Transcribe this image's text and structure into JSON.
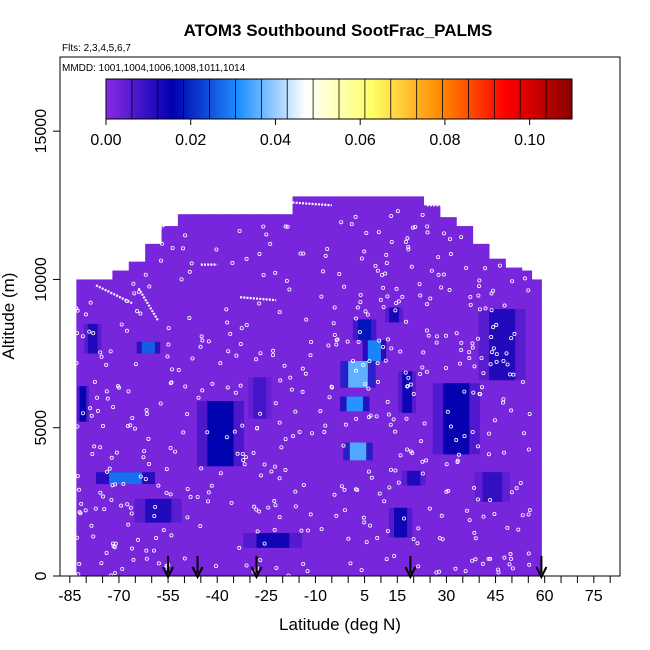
{
  "chart_data": {
    "type": "heatmap",
    "title": "ATOM3 Southbound SootFrac_PALMS",
    "flights_label": "Flts: 2,3,4,5,6,7",
    "dates_label": "MMDD: 1001,1004,1006,1008,1011,1014",
    "xlabel": "Latitude (deg N)",
    "ylabel": "Altitude (m)",
    "xlim": [
      -88,
      83
    ],
    "ylim": [
      0,
      17500
    ],
    "xticks": [
      -85,
      -70,
      -55,
      -40,
      -25,
      -10,
      5,
      15,
      30,
      45,
      60,
      75
    ],
    "xticks_minor": [
      -80,
      -75,
      -65,
      -60,
      -50,
      -45,
      -35,
      -30,
      -20,
      -15,
      -5,
      0,
      10,
      20,
      25,
      35,
      40,
      50,
      55,
      65,
      70,
      80
    ],
    "yticks": [
      0,
      5000,
      10000,
      15000
    ],
    "colorbar": {
      "ticks": [
        0.0,
        0.02,
        0.04,
        0.06,
        0.08,
        0.1
      ],
      "tick_labels": [
        "0.00",
        "0.02",
        "0.04",
        "0.06",
        "0.08",
        "0.10"
      ],
      "min": 0.0,
      "max": 0.11,
      "stops": [
        "#8a2be2",
        "#0000b0",
        "#1e90ff",
        "#ffffff",
        "#ffff66",
        "#ff8c00",
        "#ff0000",
        "#8b0000"
      ]
    },
    "background_value": 0.002,
    "top_profile": [
      {
        "lat": -82,
        "top": 10000
      },
      {
        "lat": -78,
        "top": 10000
      },
      {
        "lat": -72,
        "top": 10300
      },
      {
        "lat": -67,
        "top": 10600
      },
      {
        "lat": -62,
        "top": 11200
      },
      {
        "lat": -57,
        "top": 11800
      },
      {
        "lat": -52,
        "top": 12200
      },
      {
        "lat": -47,
        "top": 12200
      },
      {
        "lat": -42,
        "top": 12200
      },
      {
        "lat": -37,
        "top": 12200
      },
      {
        "lat": -32,
        "top": 12200
      },
      {
        "lat": -27,
        "top": 12200
      },
      {
        "lat": -22,
        "top": 12200
      },
      {
        "lat": -17,
        "top": 12800
      },
      {
        "lat": -12,
        "top": 12800
      },
      {
        "lat": -7,
        "top": 12800
      },
      {
        "lat": -2,
        "top": 12800
      },
      {
        "lat": 3,
        "top": 12800
      },
      {
        "lat": 8,
        "top": 12800
      },
      {
        "lat": 13,
        "top": 12800
      },
      {
        "lat": 18,
        "top": 12800
      },
      {
        "lat": 23,
        "top": 12500
      },
      {
        "lat": 28,
        "top": 12100
      },
      {
        "lat": 33,
        "top": 11800
      },
      {
        "lat": 38,
        "top": 11200
      },
      {
        "lat": 43,
        "top": 10700
      },
      {
        "lat": 48,
        "top": 10400
      },
      {
        "lat": 53,
        "top": 10300
      },
      {
        "lat": 56,
        "top": 10000
      }
    ],
    "bottom_edge": {
      "lat_south": -83,
      "lat_north": 56
    },
    "hotspots": [
      {
        "lat": -81,
        "alt": 5800,
        "w": 2,
        "h": 1200,
        "value": 0.015
      },
      {
        "lat": -78,
        "alt": 8000,
        "w": 3,
        "h": 1000,
        "value": 0.012
      },
      {
        "lat": -68,
        "alt": 3300,
        "w": 10,
        "h": 400,
        "value": 0.028
      },
      {
        "lat": -61,
        "alt": 7700,
        "w": 4,
        "h": 400,
        "value": 0.026
      },
      {
        "lat": -58,
        "alt": 2200,
        "w": 8,
        "h": 800,
        "value": 0.012
      },
      {
        "lat": -39,
        "alt": 4800,
        "w": 8,
        "h": 2200,
        "value": 0.016
      },
      {
        "lat": -23,
        "alt": 1200,
        "w": 10,
        "h": 500,
        "value": 0.014
      },
      {
        "lat": -27,
        "alt": 6000,
        "w": 4,
        "h": 1400,
        "value": 0.008
      },
      {
        "lat": 3,
        "alt": 6800,
        "w": 6,
        "h": 900,
        "value": 0.036
      },
      {
        "lat": 2,
        "alt": 5800,
        "w": 5,
        "h": 500,
        "value": 0.032
      },
      {
        "lat": 3,
        "alt": 4200,
        "w": 5,
        "h": 600,
        "value": 0.035
      },
      {
        "lat": 8,
        "alt": 7600,
        "w": 4,
        "h": 700,
        "value": 0.03
      },
      {
        "lat": 5,
        "alt": 8300,
        "w": 4,
        "h": 700,
        "value": 0.018
      },
      {
        "lat": 18,
        "alt": 6200,
        "w": 3,
        "h": 1400,
        "value": 0.014
      },
      {
        "lat": 16,
        "alt": 1800,
        "w": 4,
        "h": 1000,
        "value": 0.014
      },
      {
        "lat": 20,
        "alt": 3300,
        "w": 4,
        "h": 500,
        "value": 0.012
      },
      {
        "lat": 33,
        "alt": 5300,
        "w": 8,
        "h": 2400,
        "value": 0.015
      },
      {
        "lat": 47,
        "alt": 7800,
        "w": 8,
        "h": 2400,
        "value": 0.012
      },
      {
        "lat": 44,
        "alt": 3000,
        "w": 6,
        "h": 1000,
        "value": 0.01
      },
      {
        "lat": 14,
        "alt": 8800,
        "w": 3,
        "h": 500,
        "value": 0.013
      }
    ],
    "flight_tracks": [
      {
        "lat0": -77,
        "alt0": 9800,
        "lat1": -66,
        "alt1": 9200
      },
      {
        "lat0": -64,
        "alt0": 9700,
        "lat1": -58,
        "alt1": 8600
      },
      {
        "lat0": -62,
        "alt0": 11300,
        "lat1": -53,
        "alt1": 12100
      },
      {
        "lat0": -45,
        "alt0": 10500,
        "lat1": -40,
        "alt1": 10500
      },
      {
        "lat0": -33,
        "alt0": 9400,
        "lat1": -22,
        "alt1": 9300
      },
      {
        "lat0": -18,
        "alt0": 12600,
        "lat1": -5,
        "alt1": 12500
      },
      {
        "lat0": 24,
        "alt0": 12500,
        "lat1": 30,
        "alt1": 12500
      }
    ],
    "arrows": [
      {
        "lat": -55,
        "label": ""
      },
      {
        "lat": -46,
        "label": ""
      },
      {
        "lat": -28,
        "label": ""
      },
      {
        "lat": 19,
        "label": ""
      },
      {
        "lat": 59,
        "label": ""
      }
    ],
    "sample_point_count": 520
  }
}
